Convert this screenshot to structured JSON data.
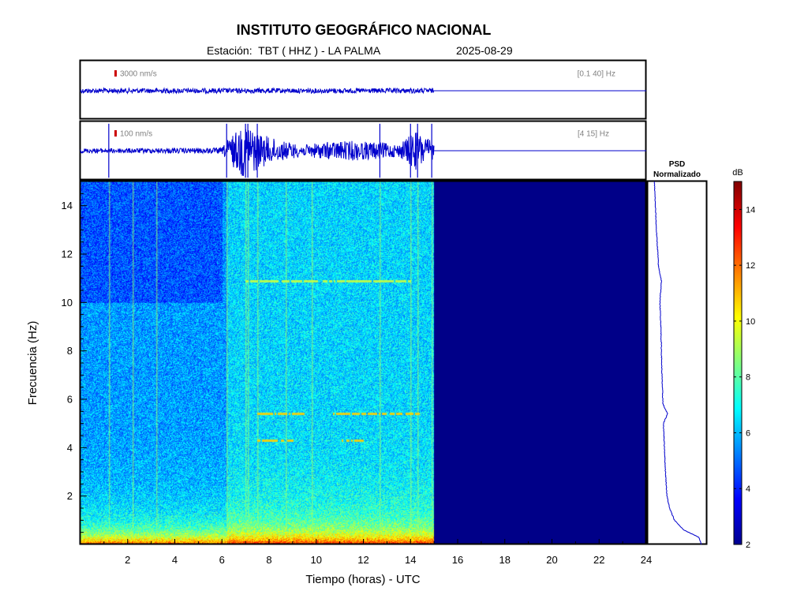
{
  "header": {
    "title": "INSTITUTO GEOGRÁFICO NACIONAL",
    "station_label": "Estación:  TBT ( HHZ ) - LA PALMA",
    "date": "2025-08-29"
  },
  "colors": {
    "trace": "#0000cc",
    "scale_marker": "#cc0000",
    "empty_region": "#000088"
  },
  "chart_data": [
    {
      "type": "line",
      "panel": "seismogram-broadband",
      "scale_label": "3000 nm/s",
      "filter_label": "[0.1 40] Hz",
      "x_range": [
        0,
        24
      ],
      "data_end_hour": 15,
      "amplitude_profile": [
        {
          "hour": 0,
          "amp": 0.12
        },
        {
          "hour": 15,
          "amp": 0.12
        }
      ]
    },
    {
      "type": "line",
      "panel": "seismogram-filtered",
      "scale_label": "100 nm/s",
      "filter_label": "[4 15] Hz",
      "x_range": [
        0,
        24
      ],
      "data_end_hour": 15,
      "amplitude_profile": [
        {
          "hour": 0,
          "amp": 0.08
        },
        {
          "hour": 6.0,
          "amp": 0.1
        },
        {
          "hour": 6.3,
          "amp": 0.45
        },
        {
          "hour": 7.0,
          "amp": 1.0
        },
        {
          "hour": 7.6,
          "amp": 0.6
        },
        {
          "hour": 8.5,
          "amp": 0.35
        },
        {
          "hour": 9.5,
          "amp": 0.2
        },
        {
          "hour": 10.3,
          "amp": 0.3
        },
        {
          "hour": 11.5,
          "amp": 0.35
        },
        {
          "hour": 12.7,
          "amp": 0.3
        },
        {
          "hour": 13.5,
          "amp": 0.22
        },
        {
          "hour": 14.2,
          "amp": 0.7
        },
        {
          "hour": 15,
          "amp": 0.3
        }
      ],
      "spikes_hours": [
        1.2,
        6.2,
        7.0,
        7.1,
        7.5,
        12.7,
        14.0,
        14.3,
        14.9
      ]
    },
    {
      "type": "heatmap",
      "panel": "spectrogram",
      "xlabel": "Tiempo (horas) - UTC",
      "ylabel": "Frecuencia  (Hz)",
      "x_range": [
        0,
        24
      ],
      "y_range": [
        0,
        15
      ],
      "x_ticks": [
        2,
        4,
        6,
        8,
        10,
        12,
        14,
        16,
        18,
        20,
        22,
        24
      ],
      "y_ticks": [
        2,
        4,
        6,
        8,
        10,
        12,
        14
      ],
      "data_end_hour": 15,
      "colorbar": {
        "label": "dB",
        "range": [
          2,
          15
        ],
        "ticks": [
          2,
          4,
          6,
          8,
          10,
          12,
          14
        ]
      },
      "horizontal_lines": [
        {
          "freq": 5.4,
          "from_hour": 7.5,
          "to_hour": 9.5
        },
        {
          "freq": 5.4,
          "from_hour": 10.7,
          "to_hour": 14.4
        },
        {
          "freq": 10.9,
          "from_hour": 7.0,
          "to_hour": 14.0
        },
        {
          "freq": 4.3,
          "from_hour": 7.5,
          "to_hour": 9.0
        },
        {
          "freq": 4.3,
          "from_hour": 11.0,
          "to_hour": 12.0
        }
      ],
      "vertical_lines_hours": [
        1.2,
        2.2,
        3.2,
        6.2,
        7.0,
        7.1,
        7.5,
        8.7,
        9.8,
        12.7,
        14.0,
        14.3,
        14.9
      ]
    },
    {
      "type": "line",
      "panel": "psd",
      "title": "PSD",
      "subtitle": "Normalizado",
      "y_range": [
        0,
        15
      ],
      "profile": [
        {
          "freq": 0.0,
          "val": 0.95
        },
        {
          "freq": 0.3,
          "val": 0.9
        },
        {
          "freq": 0.6,
          "val": 0.6
        },
        {
          "freq": 1.0,
          "val": 0.42
        },
        {
          "freq": 1.5,
          "val": 0.32
        },
        {
          "freq": 2.0,
          "val": 0.27
        },
        {
          "freq": 3.0,
          "val": 0.24
        },
        {
          "freq": 4.0,
          "val": 0.22
        },
        {
          "freq": 5.0,
          "val": 0.2
        },
        {
          "freq": 5.4,
          "val": 0.28
        },
        {
          "freq": 5.8,
          "val": 0.19
        },
        {
          "freq": 7.0,
          "val": 0.17
        },
        {
          "freq": 8.0,
          "val": 0.16
        },
        {
          "freq": 9.0,
          "val": 0.15
        },
        {
          "freq": 10.0,
          "val": 0.13
        },
        {
          "freq": 10.9,
          "val": 0.16
        },
        {
          "freq": 11.5,
          "val": 0.1
        },
        {
          "freq": 12.0,
          "val": 0.09
        },
        {
          "freq": 13.0,
          "val": 0.06
        },
        {
          "freq": 14.0,
          "val": 0.04
        },
        {
          "freq": 15.0,
          "val": 0.02
        }
      ]
    }
  ]
}
